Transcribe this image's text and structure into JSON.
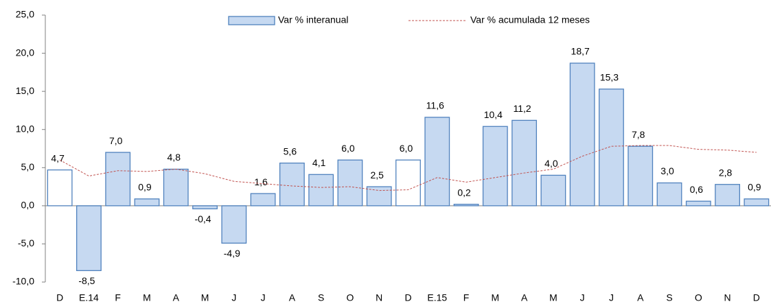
{
  "chart_data": {
    "type": "bar",
    "categories": [
      "D",
      "E.14",
      "F",
      "M",
      "A",
      "M",
      "J",
      "J",
      "A",
      "S",
      "O",
      "N",
      "D",
      "E.15",
      "F",
      "M",
      "A",
      "M",
      "J",
      "J",
      "A",
      "S",
      "O",
      "N",
      "D"
    ],
    "series": [
      {
        "name": "Var % interanual",
        "type": "bar",
        "color": "#c6d9f1",
        "edge_color": "#4f81bd",
        "colors": [
          "#ffffff",
          "#c6d9f1",
          "#c6d9f1",
          "#c6d9f1",
          "#c6d9f1",
          "#c6d9f1",
          "#c6d9f1",
          "#c6d9f1",
          "#c6d9f1",
          "#c6d9f1",
          "#c6d9f1",
          "#c6d9f1",
          "#ffffff",
          "#c6d9f1",
          "#c6d9f1",
          "#c6d9f1",
          "#c6d9f1",
          "#c6d9f1",
          "#c6d9f1",
          "#c6d9f1",
          "#c6d9f1",
          "#c6d9f1",
          "#c6d9f1",
          "#c6d9f1",
          "#c6d9f1"
        ],
        "values": [
          4.7,
          -8.5,
          7.0,
          0.9,
          4.8,
          -0.4,
          -4.9,
          1.6,
          5.6,
          4.1,
          6.0,
          2.5,
          6.0,
          11.6,
          0.2,
          10.4,
          11.2,
          4.0,
          18.7,
          15.3,
          7.8,
          3.0,
          0.6,
          2.8,
          0.9
        ],
        "value_labels": [
          "4,7",
          "-8,5",
          "7,0",
          "0,9",
          "4,8",
          "-0,4",
          "-4,9",
          "1,6",
          "5,6",
          "4,1",
          "6,0",
          "2,5",
          "6,0",
          "11,6",
          "0,2",
          "10,4",
          "11,2",
          "4,0",
          "18,7",
          "15,3",
          "7,8",
          "3,0",
          "0,6",
          "2,8",
          "0,9"
        ]
      },
      {
        "name": "Var % acumulada 12 meses",
        "type": "line",
        "color": "#c0504d",
        "values": [
          6.0,
          3.9,
          4.6,
          4.5,
          4.8,
          4.2,
          3.2,
          2.9,
          2.6,
          2.4,
          2.5,
          2.0,
          2.1,
          3.7,
          3.1,
          3.7,
          4.3,
          4.8,
          6.5,
          7.8,
          7.9,
          7.9,
          7.4,
          7.3,
          7.0
        ]
      }
    ],
    "ylim": [
      -10,
      25
    ],
    "yticks": [
      {
        "value": -10,
        "label": "-10,0"
      },
      {
        "value": -5,
        "label": "-5,0"
      },
      {
        "value": 0,
        "label": "0,0"
      },
      {
        "value": 5,
        "label": "5,0"
      },
      {
        "value": 10,
        "label": "10,0"
      },
      {
        "value": 15,
        "label": "15,0"
      },
      {
        "value": 20,
        "label": "20,0"
      },
      {
        "value": 25,
        "label": "25,0"
      }
    ]
  }
}
